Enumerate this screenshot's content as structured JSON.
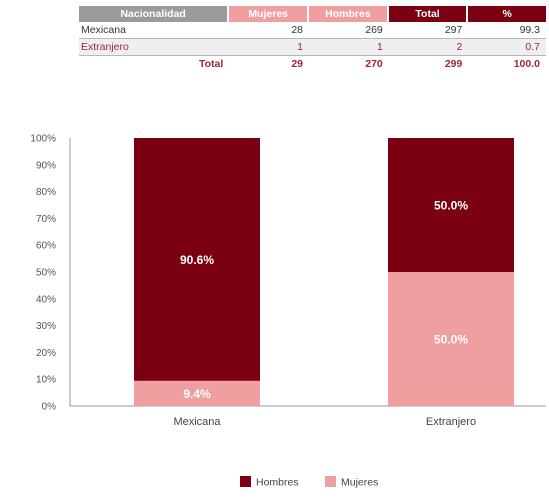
{
  "table": {
    "headers": [
      "Nacionalidad",
      "Mujeres",
      "Hombres",
      "Total",
      "%"
    ],
    "rows": [
      [
        "Mexicana",
        "28",
        "269",
        "297",
        "99.3"
      ],
      [
        "Extranjero",
        "1",
        "1",
        "2",
        "0.7"
      ]
    ],
    "total": [
      "Total",
      "29",
      "270",
      "299",
      "100.0"
    ]
  },
  "chart_data": {
    "type": "bar",
    "stacked": true,
    "categories": [
      "Mexicana",
      "Extranjero"
    ],
    "series": [
      {
        "name": "Mujeres",
        "values": [
          9.4,
          50.0
        ],
        "labels": [
          "9.4%",
          "50.0%"
        ],
        "color": "#ef9f9f"
      },
      {
        "name": "Hombres",
        "values": [
          90.6,
          50.0
        ],
        "labels": [
          "90.6%",
          "50.0%"
        ],
        "color": "#7b0012"
      }
    ],
    "ylim": [
      0,
      100
    ],
    "yticks": [
      "0%",
      "10%",
      "20%",
      "30%",
      "40%",
      "50%",
      "60%",
      "70%",
      "80%",
      "90%",
      "100%"
    ],
    "legend": [
      {
        "name": "Hombres",
        "color": "#7b0012"
      },
      {
        "name": "Mujeres",
        "color": "#ef9f9f"
      }
    ],
    "legend_position": "bottom",
    "grid": false
  }
}
